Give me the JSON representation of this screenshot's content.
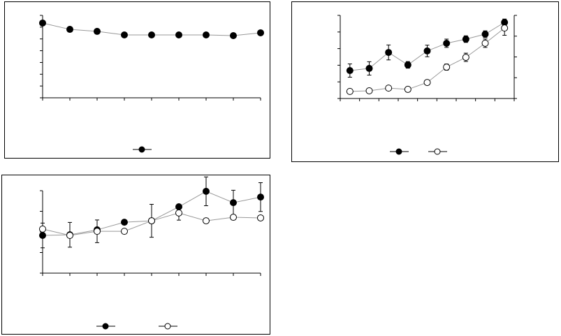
{
  "chart_data": [
    {
      "type": "line",
      "categories": [
        null,
        null,
        null,
        null,
        null,
        null,
        null,
        null,
        null
      ],
      "ylim": [
        0,
        7
      ],
      "yticks": [
        0,
        1,
        2,
        3,
        4,
        5,
        6,
        7
      ],
      "legend": "bottom",
      "series": [
        {
          "color": "#000000",
          "marker": "filled",
          "values": [
            6.35,
            5.81,
            5.64,
            5.34,
            5.34,
            5.34,
            5.34,
            5.28,
            5.52
          ],
          "errors": [
            0.15,
            0.1,
            0.2,
            0.15,
            0.15,
            0.2,
            0.2,
            0.1,
            0.15
          ]
        }
      ]
    },
    {
      "type": "line",
      "categories": [
        null,
        null,
        null,
        null,
        null,
        null,
        null,
        null,
        null
      ],
      "ylim": [
        0,
        5
      ],
      "yticks": [
        0,
        1,
        2,
        3,
        4,
        5
      ],
      "y2lim": [
        0,
        4
      ],
      "y2ticks": [
        0,
        1,
        2,
        3,
        4
      ],
      "legend": "bottom",
      "series": [
        {
          "color": "#000000",
          "marker": "filled",
          "values": [
            1.68,
            1.81,
            2.77,
            2.02,
            2.86,
            3.32,
            3.57,
            3.87,
            4.58
          ],
          "errors": [
            0.4,
            0.4,
            0.45,
            0.2,
            0.35,
            0.25,
            0.2,
            0.2,
            0.2
          ]
        },
        {
          "color": "#000000",
          "marker": "open",
          "axis": "y2",
          "values": [
            0.34,
            0.37,
            0.5,
            0.44,
            0.77,
            1.51,
            1.98,
            2.66,
            3.39
          ],
          "errors": [
            0.05,
            0.05,
            0.05,
            0.05,
            0.08,
            0.15,
            0.2,
            0.2,
            0.35
          ]
        }
      ]
    },
    {
      "type": "line",
      "categories": [
        null,
        null,
        null,
        null,
        null,
        null,
        null,
        null,
        null
      ],
      "ylim": [
        0,
        4
      ],
      "yticks": [
        0,
        1,
        2,
        3,
        4
      ],
      "legend": "bottom",
      "series": [
        {
          "color": "#000000",
          "marker": "filled",
          "values": [
            1.83,
            1.86,
            2.1,
            2.47,
            2.54,
            3.22,
            3.97,
            3.42,
            3.69
          ],
          "errors": [
            0.6,
            0.6,
            0.05,
            0.05,
            0.05,
            0.1,
            0.7,
            0.6,
            0.7
          ]
        },
        {
          "color": "#000000",
          "marker": "open",
          "values": [
            2.14,
            1.83,
            2.03,
            2.03,
            2.54,
            2.92,
            2.54,
            2.71,
            2.68
          ],
          "errors": [
            0.05,
            0.05,
            0.55,
            0.05,
            0.8,
            0.35,
            0.05,
            0.05,
            0.05
          ]
        }
      ]
    }
  ]
}
